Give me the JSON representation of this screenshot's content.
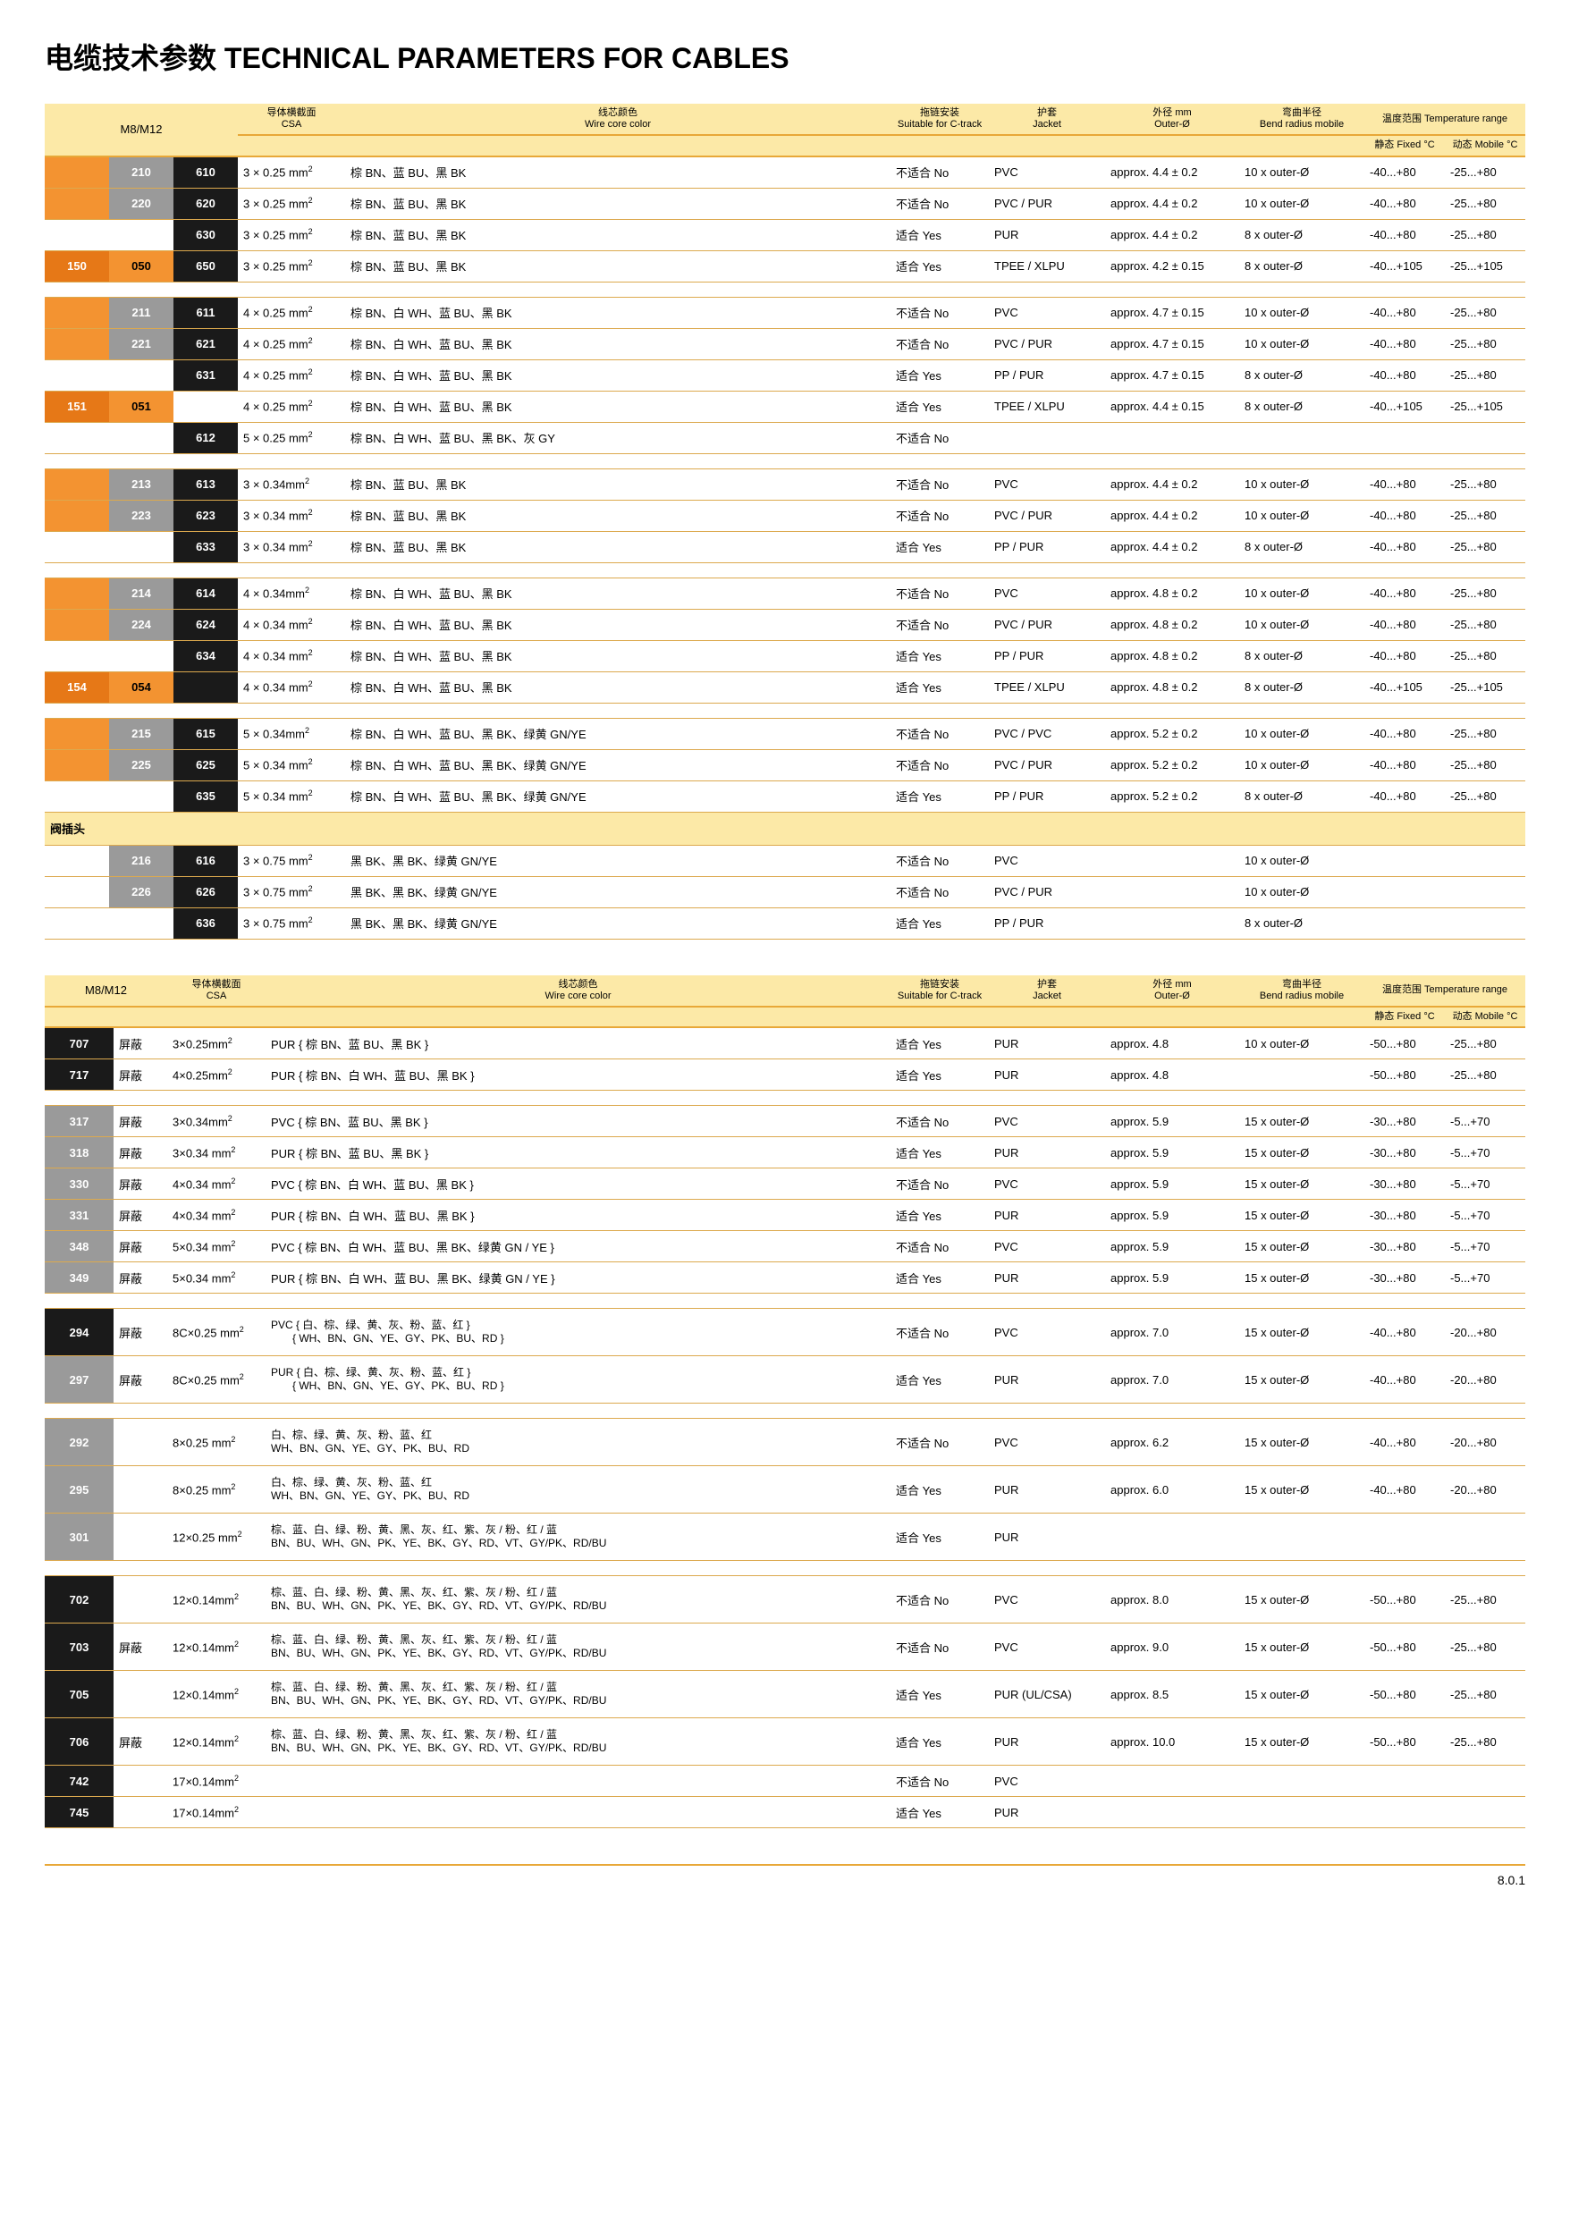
{
  "title": "电缆技术参数 TECHNICAL PARAMETERS FOR CABLES",
  "footer": "8.0.1",
  "headers1": {
    "m8m12": "M8/M12",
    "csa_cn": "导体横截面",
    "csa_en": "CSA",
    "wire_cn": "线芯颜色",
    "wire_en": "Wire core color",
    "ctrack_cn": "拖链安装",
    "ctrack_en": "Suitable for C-track",
    "jacket_cn": "护套",
    "jacket_en": "Jacket",
    "outer_cn": "外径 mm",
    "outer_en": "Outer-Ø",
    "bend_cn": "弯曲半径",
    "bend_en": "Bend radius mobile",
    "temp_cn": "温度范围 Temperature range",
    "temp_fix": "静态 Fixed °C",
    "temp_mob": "动态 Mobile °C"
  },
  "section1": "阀插头",
  "t1": [
    {
      "c": [
        "",
        "210",
        "610"
      ],
      "cls": [
        "c-orange2",
        "c-gray",
        "c-dark"
      ],
      "csa": "3 × 0.25 mm²",
      "wire": "棕 BN、蓝 BU、黑 BK",
      "ct": "不适合 No",
      "j": "PVC",
      "o": "approx. 4.4 ± 0.2",
      "b": "10 x outer-Ø",
      "tf": "-40...+80",
      "tm": "-25...+80"
    },
    {
      "c": [
        "",
        "220",
        "620"
      ],
      "cls": [
        "c-orange2",
        "c-gray",
        "c-dark"
      ],
      "csa": "3 × 0.25 mm²",
      "wire": "棕 BN、蓝 BU、黑 BK",
      "ct": "不适合 No",
      "j": "PVC / PUR",
      "o": "approx. 4.4 ± 0.2",
      "b": "10 x outer-Ø",
      "tf": "-40...+80",
      "tm": "-25...+80"
    },
    {
      "c": [
        "",
        "",
        "630"
      ],
      "cls": [
        "c-blank",
        "c-blank",
        "c-dark"
      ],
      "csa": "3 × 0.25 mm²",
      "wire": "棕 BN、蓝 BU、黑 BK",
      "ct": "适合 Yes",
      "j": "PUR",
      "o": "approx. 4.4 ± 0.2",
      "b": "8 x outer-Ø",
      "tf": "-40...+80",
      "tm": "-25...+80"
    },
    {
      "c": [
        "150",
        "050",
        "650"
      ],
      "cls": [
        "c-orange",
        "c-orange2",
        "c-dark"
      ],
      "csa": "3 × 0.25 mm²",
      "wire": "棕 BN、蓝 BU、黑 BK",
      "ct": "适合 Yes",
      "j": "TPEE / XLPU",
      "o": "approx. 4.2 ± 0.15",
      "b": "8 x outer-Ø",
      "tf": "-40...+105",
      "tm": "-25...+105"
    },
    {
      "gap": true
    },
    {
      "c": [
        "",
        "211",
        "611"
      ],
      "cls": [
        "c-orange2",
        "c-gray",
        "c-dark"
      ],
      "csa": "4 × 0.25 mm²",
      "wire": "棕 BN、白 WH、蓝 BU、黑 BK",
      "ct": "不适合 No",
      "j": "PVC",
      "o": "approx. 4.7 ± 0.15",
      "b": "10 x outer-Ø",
      "tf": "-40...+80",
      "tm": "-25...+80"
    },
    {
      "c": [
        "",
        "221",
        "621"
      ],
      "cls": [
        "c-orange2",
        "c-gray",
        "c-dark"
      ],
      "csa": "4 × 0.25 mm²",
      "wire": "棕 BN、白 WH、蓝 BU、黑 BK",
      "ct": "不适合 No",
      "j": "PVC / PUR",
      "o": "approx. 4.7 ± 0.15",
      "b": "10 x outer-Ø",
      "tf": "-40...+80",
      "tm": "-25...+80"
    },
    {
      "c": [
        "",
        "",
        "631"
      ],
      "cls": [
        "c-blank",
        "c-blank",
        "c-dark"
      ],
      "csa": "4 × 0.25 mm²",
      "wire": "棕 BN、白 WH、蓝 BU、黑 BK",
      "ct": "适合 Yes",
      "j": "PP / PUR",
      "o": "approx. 4.7 ± 0.15",
      "b": "8 x outer-Ø",
      "tf": "-40...+80",
      "tm": "-25...+80"
    },
    {
      "c": [
        "151",
        "051",
        ""
      ],
      "cls": [
        "c-orange",
        "c-orange2",
        "c-blank"
      ],
      "csa": "4 × 0.25 mm²",
      "wire": "棕 BN、白 WH、蓝 BU、黑 BK",
      "ct": "适合 Yes",
      "j": "TPEE / XLPU",
      "o": "approx. 4.4 ± 0.15",
      "b": "8 x outer-Ø",
      "tf": "-40...+105",
      "tm": "-25...+105"
    },
    {
      "c": [
        "",
        "",
        "612"
      ],
      "cls": [
        "c-blank",
        "c-blank",
        "c-dark"
      ],
      "csa": "5 × 0.25 mm²",
      "wire": "棕 BN、白 WH、蓝 BU、黑 BK、灰 GY",
      "ct": "不适合 No",
      "j": "",
      "o": "",
      "b": "",
      "tf": "",
      "tm": ""
    },
    {
      "gap": true
    },
    {
      "c": [
        "",
        "213",
        "613"
      ],
      "cls": [
        "c-orange2",
        "c-gray",
        "c-dark"
      ],
      "csa": "3 × 0.34mm²",
      "wire": "棕 BN、蓝 BU、黑 BK",
      "ct": "不适合 No",
      "j": "PVC",
      "o": "approx. 4.4 ± 0.2",
      "b": "10 x outer-Ø",
      "tf": "-40...+80",
      "tm": "-25...+80"
    },
    {
      "c": [
        "",
        "223",
        "623"
      ],
      "cls": [
        "c-orange2",
        "c-gray",
        "c-dark"
      ],
      "csa": "3 × 0.34 mm²",
      "wire": "棕 BN、蓝 BU、黑 BK",
      "ct": "不适合 No",
      "j": "PVC / PUR",
      "o": "approx. 4.4 ± 0.2",
      "b": "10 x outer-Ø",
      "tf": "-40...+80",
      "tm": "-25...+80"
    },
    {
      "c": [
        "",
        "",
        "633"
      ],
      "cls": [
        "c-blank",
        "c-blank",
        "c-dark"
      ],
      "csa": "3 × 0.34 mm²",
      "wire": "棕 BN、蓝 BU、黑 BK",
      "ct": "适合 Yes",
      "j": "PP / PUR",
      "o": "approx. 4.4 ± 0.2",
      "b": "8 x outer-Ø",
      "tf": "-40...+80",
      "tm": "-25...+80"
    },
    {
      "gap": true
    },
    {
      "c": [
        "",
        "214",
        "614"
      ],
      "cls": [
        "c-orange2",
        "c-gray",
        "c-dark"
      ],
      "csa": "4 × 0.34mm²",
      "wire": "棕 BN、白 WH、蓝 BU、黑 BK",
      "ct": "不适合 No",
      "j": "PVC",
      "o": "approx. 4.8 ± 0.2",
      "b": "10 x outer-Ø",
      "tf": "-40...+80",
      "tm": "-25...+80"
    },
    {
      "c": [
        "",
        "224",
        "624"
      ],
      "cls": [
        "c-orange2",
        "c-gray",
        "c-dark"
      ],
      "csa": "4 × 0.34 mm²",
      "wire": "棕 BN、白 WH、蓝 BU、黑 BK",
      "ct": "不适合 No",
      "j": "PVC / PUR",
      "o": "approx. 4.8 ± 0.2",
      "b": "10 x outer-Ø",
      "tf": "-40...+80",
      "tm": "-25...+80"
    },
    {
      "c": [
        "",
        "",
        "634"
      ],
      "cls": [
        "c-blank",
        "c-blank",
        "c-dark"
      ],
      "csa": "4 × 0.34 mm²",
      "wire": "棕 BN、白 WH、蓝 BU、黑 BK",
      "ct": "适合 Yes",
      "j": "PP / PUR",
      "o": "approx. 4.8 ± 0.2",
      "b": "8 x outer-Ø",
      "tf": "-40...+80",
      "tm": "-25...+80"
    },
    {
      "c": [
        "154",
        "054",
        ""
      ],
      "cls": [
        "c-orange",
        "c-orange2",
        "c-dark"
      ],
      "csa": "4 × 0.34 mm²",
      "wire": "棕 BN、白 WH、蓝 BU、黑 BK",
      "ct": "适合 Yes",
      "j": "TPEE / XLPU",
      "o": "approx. 4.8 ± 0.2",
      "b": "8 x outer-Ø",
      "tf": "-40...+105",
      "tm": "-25...+105"
    },
    {
      "gap": true
    },
    {
      "c": [
        "",
        "215",
        "615"
      ],
      "cls": [
        "c-orange2",
        "c-gray",
        "c-dark"
      ],
      "csa": "5 × 0.34mm²",
      "wire": "棕 BN、白 WH、蓝 BU、黑 BK、绿黄 GN/YE",
      "ct": "不适合 No",
      "j": "PVC / PVC",
      "o": "approx. 5.2 ± 0.2",
      "b": "10 x outer-Ø",
      "tf": "-40...+80",
      "tm": "-25...+80"
    },
    {
      "c": [
        "",
        "225",
        "625"
      ],
      "cls": [
        "c-orange2",
        "c-gray",
        "c-dark"
      ],
      "csa": "5 × 0.34 mm²",
      "wire": "棕 BN、白 WH、蓝 BU、黑 BK、绿黄 GN/YE",
      "ct": "不适合 No",
      "j": "PVC / PUR",
      "o": "approx. 5.2 ± 0.2",
      "b": "10 x outer-Ø",
      "tf": "-40...+80",
      "tm": "-25...+80"
    },
    {
      "c": [
        "",
        "",
        "635"
      ],
      "cls": [
        "c-blank",
        "c-blank",
        "c-dark"
      ],
      "csa": "5 × 0.34 mm²",
      "wire": "棕 BN、白 WH、蓝 BU、黑 BK、绿黄 GN/YE",
      "ct": "适合 Yes",
      "j": "PP / PUR",
      "o": "approx. 5.2 ± 0.2",
      "b": "8 x outer-Ø",
      "tf": "-40...+80",
      "tm": "-25...+80"
    },
    {
      "section": "阀插头"
    },
    {
      "c": [
        "",
        "216",
        "616"
      ],
      "cls": [
        "c-blank",
        "c-gray",
        "c-dark"
      ],
      "csa": "3 × 0.75 mm²",
      "wire": "黑 BK、黑 BK、绿黄 GN/YE",
      "ct": "不适合 No",
      "j": "PVC",
      "o": "",
      "b": "10 x outer-Ø",
      "tf": "",
      "tm": ""
    },
    {
      "c": [
        "",
        "226",
        "626"
      ],
      "cls": [
        "c-blank",
        "c-gray",
        "c-dark"
      ],
      "csa": "3 × 0.75 mm²",
      "wire": "黑 BK、黑 BK、绿黄 GN/YE",
      "ct": "不适合 No",
      "j": "PVC / PUR",
      "o": "",
      "b": "10 x outer-Ø",
      "tf": "",
      "tm": ""
    },
    {
      "c": [
        "",
        "",
        "636"
      ],
      "cls": [
        "c-blank",
        "c-blank",
        "c-dark"
      ],
      "csa": "3 × 0.75 mm²",
      "wire": "黑 BK、黑 BK、绿黄 GN/YE",
      "ct": "适合 Yes",
      "j": "PP / PUR",
      "o": "",
      "b": "8 x outer-Ø",
      "tf": "",
      "tm": ""
    }
  ],
  "t2": [
    {
      "code": "707",
      "cls": "c-dark",
      "sh": "屏蔽",
      "csa": "3×0.25mm²",
      "wire": "PUR { 棕 BN、蓝 BU、黑 BK }",
      "ct": "适合 Yes",
      "j": "PUR",
      "o": "approx. 4.8",
      "b": "10 x outer-Ø",
      "tf": "-50...+80",
      "tm": "-25...+80"
    },
    {
      "code": "717",
      "cls": "c-dark",
      "sh": "屏蔽",
      "csa": "4×0.25mm²",
      "wire": "PUR { 棕 BN、白 WH、蓝 BU、黑 BK }",
      "ct": "适合 Yes",
      "j": "PUR",
      "o": "approx. 4.8",
      "b": "",
      "tf": "-50...+80",
      "tm": "-25...+80"
    },
    {
      "gap": true
    },
    {
      "code": "317",
      "cls": "c-gray",
      "sh": "屏蔽",
      "csa": "3×0.34mm²",
      "wire": "PVC { 棕 BN、蓝 BU、黑 BK }",
      "ct": "不适合 No",
      "j": "PVC",
      "o": "approx. 5.9",
      "b": "15 x outer-Ø",
      "tf": "-30...+80",
      "tm": "-5...+70"
    },
    {
      "code": "318",
      "cls": "c-gray",
      "sh": "屏蔽",
      "csa": "3×0.34 mm²",
      "wire": "PUR { 棕 BN、蓝 BU、黑 BK }",
      "ct": "适合 Yes",
      "j": "PUR",
      "o": "approx. 5.9",
      "b": "15 x outer-Ø",
      "tf": "-30...+80",
      "tm": "-5...+70"
    },
    {
      "code": "330",
      "cls": "c-gray",
      "sh": "屏蔽",
      "csa": "4×0.34 mm²",
      "wire": "PVC { 棕 BN、白 WH、蓝 BU、黑 BK }",
      "ct": "不适合 No",
      "j": "PVC",
      "o": "approx. 5.9",
      "b": "15 x outer-Ø",
      "tf": "-30...+80",
      "tm": "-5...+70"
    },
    {
      "code": "331",
      "cls": "c-gray",
      "sh": "屏蔽",
      "csa": "4×0.34 mm²",
      "wire": "PUR { 棕 BN、白 WH、蓝 BU、黑 BK }",
      "ct": "适合 Yes",
      "j": "PUR",
      "o": "approx. 5.9",
      "b": "15 x outer-Ø",
      "tf": "-30...+80",
      "tm": "-5...+70"
    },
    {
      "code": "348",
      "cls": "c-gray",
      "sh": "屏蔽",
      "csa": "5×0.34 mm²",
      "wire": "PVC { 棕 BN、白 WH、蓝 BU、黑 BK、绿黄 GN / YE }",
      "ct": "不适合 No",
      "j": "PVC",
      "o": "approx. 5.9",
      "b": "15 x outer-Ø",
      "tf": "-30...+80",
      "tm": "-5...+70"
    },
    {
      "code": "349",
      "cls": "c-gray",
      "sh": "屏蔽",
      "csa": "5×0.34 mm²",
      "wire": "PUR { 棕 BN、白 WH、蓝 BU、黑 BK、绿黄 GN / YE }",
      "ct": "适合 Yes",
      "j": "PUR",
      "o": "approx. 5.9",
      "b": "15 x outer-Ø",
      "tf": "-30...+80",
      "tm": "-5...+70"
    },
    {
      "gap": true
    },
    {
      "code": "294",
      "cls": "c-dark",
      "sh": "屏蔽",
      "csa": "8C×0.25 mm²",
      "wire": "PVC { 白、棕、绿、黄、灰、粉、蓝、红 }\n　　{ WH、BN、GN、YE、GY、PK、BU、RD }",
      "ct": "不适合 No",
      "j": "PVC",
      "o": "approx. 7.0",
      "b": "15 x outer-Ø",
      "tf": "-40...+80",
      "tm": "-20...+80",
      "tall": true
    },
    {
      "code": "297",
      "cls": "c-gray",
      "sh": "屏蔽",
      "csa": "8C×0.25 mm²",
      "wire": "PUR { 白、棕、绿、黄、灰、粉、蓝、红 }\n　　{ WH、BN、GN、YE、GY、PK、BU、RD }",
      "ct": "适合 Yes",
      "j": "PUR",
      "o": "approx. 7.0",
      "b": "15 x outer-Ø",
      "tf": "-40...+80",
      "tm": "-20...+80",
      "tall": true
    },
    {
      "gap": true
    },
    {
      "code": "292",
      "cls": "c-gray",
      "sh": "",
      "csa": "8×0.25 mm²",
      "wire": "白、棕、绿、黄、灰、粉、蓝、红\nWH、BN、GN、YE、GY、PK、BU、RD",
      "ct": "不适合 No",
      "j": "PVC",
      "o": "approx. 6.2",
      "b": "15 x outer-Ø",
      "tf": "-40...+80",
      "tm": "-20...+80",
      "tall": true
    },
    {
      "code": "295",
      "cls": "c-gray",
      "sh": "",
      "csa": "8×0.25 mm²",
      "wire": "白、棕、绿、黄、灰、粉、蓝、红\nWH、BN、GN、YE、GY、PK、BU、RD",
      "ct": "适合 Yes",
      "j": "PUR",
      "o": "approx. 6.0",
      "b": "15 x outer-Ø",
      "tf": "-40...+80",
      "tm": "-20...+80",
      "tall": true
    },
    {
      "code": "301",
      "cls": "c-gray",
      "sh": "",
      "csa": "12×0.25 mm²",
      "wire": "棕、蓝、白、绿、粉、黄、黑、灰、红、紫、灰 / 粉、红 / 蓝\nBN、BU、WH、GN、PK、YE、BK、GY、RD、VT、GY/PK、RD/BU",
      "ct": "适合 Yes",
      "j": "PUR",
      "o": "",
      "b": "",
      "tf": "",
      "tm": "",
      "tall": true
    },
    {
      "gap": true
    },
    {
      "code": "702",
      "cls": "c-dark",
      "sh": "",
      "csa": "12×0.14mm²",
      "wire": "棕、蓝、白、绿、粉、黄、黑、灰、红、紫、灰 / 粉、红 / 蓝\nBN、BU、WH、GN、PK、YE、BK、GY、RD、VT、GY/PK、RD/BU",
      "ct": "不适合 No",
      "j": "PVC",
      "o": "approx. 8.0",
      "b": "15 x outer-Ø",
      "tf": "-50...+80",
      "tm": "-25...+80",
      "tall": true
    },
    {
      "code": "703",
      "cls": "c-dark",
      "sh": "屏蔽",
      "csa": "12×0.14mm²",
      "wire": "棕、蓝、白、绿、粉、黄、黑、灰、红、紫、灰 / 粉、红 / 蓝\nBN、BU、WH、GN、PK、YE、BK、GY、RD、VT、GY/PK、RD/BU",
      "ct": "不适合 No",
      "j": "PVC",
      "o": "approx. 9.0",
      "b": "15 x outer-Ø",
      "tf": "-50...+80",
      "tm": "-25...+80",
      "tall": true
    },
    {
      "code": "705",
      "cls": "c-dark",
      "sh": "",
      "csa": "12×0.14mm²",
      "wire": "棕、蓝、白、绿、粉、黄、黑、灰、红、紫、灰 / 粉、红 / 蓝\nBN、BU、WH、GN、PK、YE、BK、GY、RD、VT、GY/PK、RD/BU",
      "ct": "适合 Yes",
      "j": "PUR (UL/CSA)",
      "o": "approx. 8.5",
      "b": "15 x outer-Ø",
      "tf": "-50...+80",
      "tm": "-25...+80",
      "tall": true
    },
    {
      "code": "706",
      "cls": "c-dark",
      "sh": "屏蔽",
      "csa": "12×0.14mm²",
      "wire": "棕、蓝、白、绿、粉、黄、黑、灰、红、紫、灰 / 粉、红 / 蓝\nBN、BU、WH、GN、PK、YE、BK、GY、RD、VT、GY/PK、RD/BU",
      "ct": "适合 Yes",
      "j": "PUR",
      "o": "approx. 10.0",
      "b": "15 x outer-Ø",
      "tf": "-50...+80",
      "tm": "-25...+80",
      "tall": true
    },
    {
      "code": "742",
      "cls": "c-dark",
      "sh": "",
      "csa": "17×0.14mm²",
      "wire": "",
      "ct": "不适合 No",
      "j": "PVC",
      "o": "",
      "b": "",
      "tf": "",
      "tm": ""
    },
    {
      "code": "745",
      "cls": "c-dark",
      "sh": "",
      "csa": "17×0.14mm²",
      "wire": "",
      "ct": "适合 Yes",
      "j": "PUR",
      "o": "",
      "b": "",
      "tf": "",
      "tm": ""
    }
  ]
}
